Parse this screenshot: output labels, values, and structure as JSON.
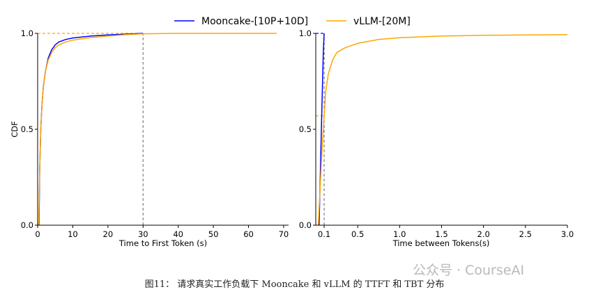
{
  "legend": {
    "placement": "top-center",
    "items": [
      {
        "name": "Mooncake-[10P+10D]",
        "color": "#0000ff"
      },
      {
        "name": "vLLM-[20M]",
        "color": "#ffa500"
      }
    ]
  },
  "chart_data": [
    {
      "type": "line",
      "xlabel": "Time to First Token (s)",
      "ylabel": "CDF",
      "xlim": [
        0,
        71.4
      ],
      "ylim": [
        0,
        1
      ],
      "xticks": [
        "0",
        "10",
        "20",
        "30",
        "40",
        "50",
        "60",
        "70"
      ],
      "yticks": [
        "0.0",
        "0.5",
        "1.0"
      ],
      "grid": false,
      "reference_lines": [
        {
          "axis": "x",
          "value": 30,
          "color": "#808080",
          "style": "dashed"
        },
        {
          "axis": "y",
          "value": 1.0,
          "x_to": 30,
          "color": "#ffa500",
          "style": "dashed"
        }
      ],
      "series": [
        {
          "name": "Mooncake-[10P+10D]",
          "color": "#0000ff",
          "x": [
            0.4,
            0.6,
            0.9,
            1.2,
            1.6,
            2.2,
            3,
            4,
            5,
            6,
            8,
            10,
            15,
            20,
            25,
            30
          ],
          "y": [
            0,
            0.3,
            0.5,
            0.62,
            0.72,
            0.8,
            0.87,
            0.915,
            0.94,
            0.955,
            0.968,
            0.976,
            0.986,
            0.992,
            0.996,
            1.0
          ]
        },
        {
          "name": "vLLM-[20M]",
          "color": "#ffa500",
          "x": [
            0.3,
            0.6,
            0.9,
            1.2,
            1.6,
            2.2,
            3,
            4,
            5,
            6,
            8,
            10,
            15,
            20,
            25,
            30,
            40,
            50,
            60,
            68
          ],
          "y": [
            0,
            0.3,
            0.5,
            0.62,
            0.72,
            0.8,
            0.86,
            0.9,
            0.925,
            0.94,
            0.955,
            0.965,
            0.978,
            0.986,
            0.993,
            0.998,
            1.0,
            1.0,
            1.0,
            1.0
          ]
        }
      ]
    },
    {
      "type": "line",
      "xlabel": "Time between Tokens(s)",
      "ylabel": "",
      "xlim": [
        0,
        3.0
      ],
      "ylim": [
        0,
        1
      ],
      "xticks": [
        "0.1",
        "0.5",
        "1.0",
        "1.5",
        "2.0",
        "2.5",
        "3.0"
      ],
      "xtick_values": [
        0.1,
        0.5,
        1.0,
        1.5,
        2.0,
        2.5,
        3.0
      ],
      "yticks": [
        "0.0",
        "0.5",
        "1.0"
      ],
      "grid": false,
      "reference_lines": [
        {
          "axis": "x",
          "value": 0.1,
          "color": "#808080",
          "style": "dashed"
        },
        {
          "axis": "y",
          "value": 1.0,
          "x_to": 0.1,
          "color": "#0000ff",
          "style": "dashed"
        },
        {
          "axis": "y",
          "value": 0.57,
          "x_to": 0.1,
          "color": "#ffa500",
          "style": "dashed"
        }
      ],
      "series": [
        {
          "name": "Mooncake-[10P+10D]",
          "color": "#0000ff",
          "x": [
            0.04,
            0.07,
            0.09,
            0.1
          ],
          "y": [
            0,
            0.55,
            0.9,
            1.0
          ]
        },
        {
          "name": "vLLM-[20M]",
          "color": "#ffa500",
          "x": [
            0.03,
            0.07,
            0.1,
            0.12,
            0.15,
            0.2,
            0.25,
            0.35,
            0.5,
            0.75,
            1.0,
            1.5,
            2.0,
            3.0
          ],
          "y": [
            0,
            0.35,
            0.57,
            0.7,
            0.79,
            0.86,
            0.9,
            0.925,
            0.948,
            0.968,
            0.977,
            0.986,
            0.99,
            0.993
          ]
        }
      ]
    }
  ],
  "caption": "图11： 请求真实工作负载下 Mooncake 和 vLLM 的 TTFT 和 TBT 分布",
  "watermark": "公众号 · CourseAI"
}
